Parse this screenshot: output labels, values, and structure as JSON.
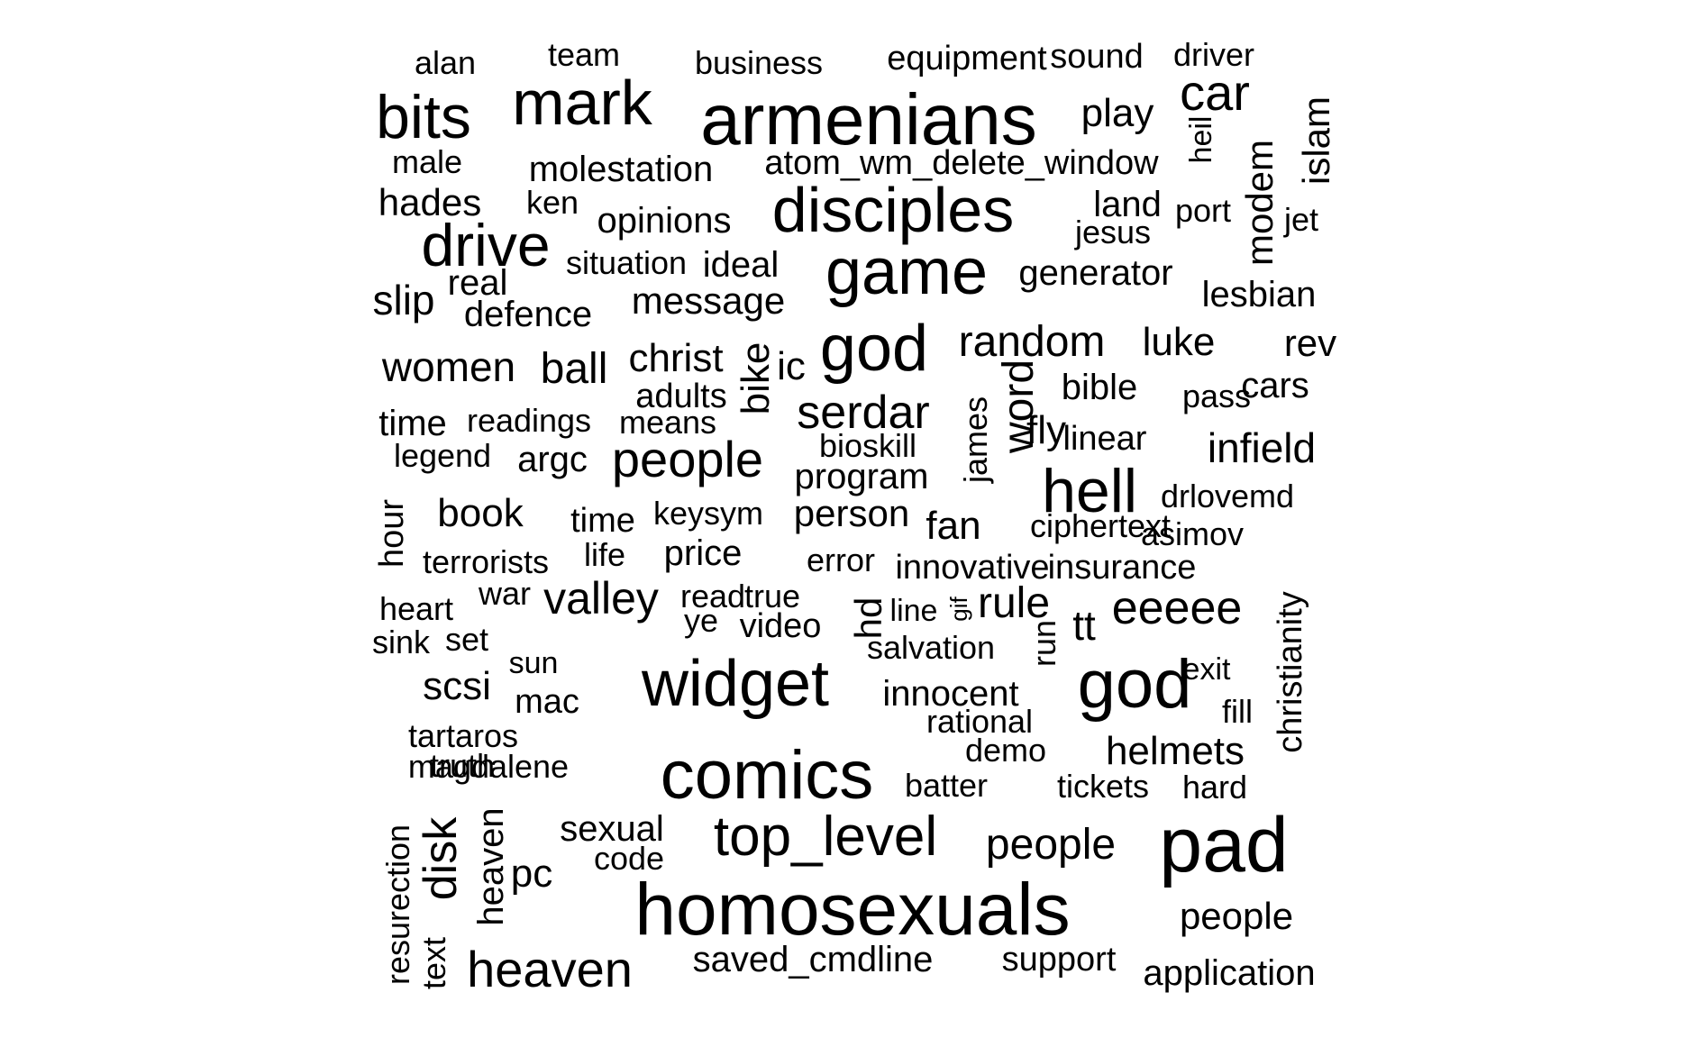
{
  "word_cloud": {
    "text_color": "#000000",
    "background": "#ffffff",
    "words": [
      {
        "text": "alan"
      },
      {
        "text": "team"
      },
      {
        "text": "business"
      },
      {
        "text": "equipment"
      },
      {
        "text": "sound"
      },
      {
        "text": "driver"
      },
      {
        "text": "bits"
      },
      {
        "text": "mark"
      },
      {
        "text": "armenians"
      },
      {
        "text": "play"
      },
      {
        "text": "car"
      },
      {
        "text": "male"
      },
      {
        "text": "molestation"
      },
      {
        "text": "atom_wm_delete_window"
      },
      {
        "text": "heil",
        "vertical": true
      },
      {
        "text": "islam",
        "vertical": true
      },
      {
        "text": "modem",
        "vertical": true
      },
      {
        "text": "hades"
      },
      {
        "text": "ken"
      },
      {
        "text": "opinions"
      },
      {
        "text": "disciples"
      },
      {
        "text": "land"
      },
      {
        "text": "port"
      },
      {
        "text": "jet"
      },
      {
        "text": "jesus"
      },
      {
        "text": "drive"
      },
      {
        "text": "situation"
      },
      {
        "text": "ideal"
      },
      {
        "text": "game"
      },
      {
        "text": "generator"
      },
      {
        "text": "real"
      },
      {
        "text": "slip"
      },
      {
        "text": "defence"
      },
      {
        "text": "message"
      },
      {
        "text": "lesbian"
      },
      {
        "text": "women"
      },
      {
        "text": "ball"
      },
      {
        "text": "christ"
      },
      {
        "text": "bike",
        "vertical": true
      },
      {
        "text": "ic"
      },
      {
        "text": "god"
      },
      {
        "text": "random"
      },
      {
        "text": "luke"
      },
      {
        "text": "rev"
      },
      {
        "text": "adults"
      },
      {
        "text": "bible"
      },
      {
        "text": "pass"
      },
      {
        "text": "cars"
      },
      {
        "text": "time"
      },
      {
        "text": "readings"
      },
      {
        "text": "means"
      },
      {
        "text": "serdar"
      },
      {
        "text": "word",
        "vertical": true
      },
      {
        "text": "fly"
      },
      {
        "text": "james",
        "vertical": true
      },
      {
        "text": "linear"
      },
      {
        "text": "infield"
      },
      {
        "text": "legend"
      },
      {
        "text": "argc"
      },
      {
        "text": "people"
      },
      {
        "text": "bioskill"
      },
      {
        "text": "program"
      },
      {
        "text": "hell"
      },
      {
        "text": "drlovemd"
      },
      {
        "text": "hour",
        "vertical": true
      },
      {
        "text": "book"
      },
      {
        "text": "time"
      },
      {
        "text": "keysym"
      },
      {
        "text": "person"
      },
      {
        "text": "fan"
      },
      {
        "text": "ciphertext"
      },
      {
        "text": "asimov"
      },
      {
        "text": "terrorists"
      },
      {
        "text": "life"
      },
      {
        "text": "price"
      },
      {
        "text": "error"
      },
      {
        "text": "innovative"
      },
      {
        "text": "insurance"
      },
      {
        "text": "christianity",
        "vertical": true
      },
      {
        "text": "heart"
      },
      {
        "text": "war"
      },
      {
        "text": "valley"
      },
      {
        "text": "read"
      },
      {
        "text": "true"
      },
      {
        "text": "hd",
        "vertical": true
      },
      {
        "text": "line"
      },
      {
        "text": "gif",
        "vertical": true
      },
      {
        "text": "rule"
      },
      {
        "text": "tt"
      },
      {
        "text": "eeeee"
      },
      {
        "text": "ye"
      },
      {
        "text": "video"
      },
      {
        "text": "sink"
      },
      {
        "text": "set"
      },
      {
        "text": "salvation"
      },
      {
        "text": "run",
        "vertical": true
      },
      {
        "text": "sun"
      },
      {
        "text": "exit"
      },
      {
        "text": "scsi"
      },
      {
        "text": "widget"
      },
      {
        "text": "god"
      },
      {
        "text": "mac"
      },
      {
        "text": "innocent"
      },
      {
        "text": "fill"
      },
      {
        "text": "rational"
      },
      {
        "text": "tartaros"
      },
      {
        "text": "magdalene"
      },
      {
        "text": "demo"
      },
      {
        "text": "helmets"
      },
      {
        "text": "truth"
      },
      {
        "text": "comics"
      },
      {
        "text": "batter"
      },
      {
        "text": "tickets"
      },
      {
        "text": "hard"
      },
      {
        "text": "resurection",
        "vertical": true
      },
      {
        "text": "disk",
        "vertical": true
      },
      {
        "text": "heaven",
        "vertical": true
      },
      {
        "text": "sexual"
      },
      {
        "text": "top_level"
      },
      {
        "text": "people"
      },
      {
        "text": "pad"
      },
      {
        "text": "code"
      },
      {
        "text": "pc"
      },
      {
        "text": "homosexuals"
      },
      {
        "text": "people"
      },
      {
        "text": "text",
        "vertical": true
      },
      {
        "text": "heaven"
      },
      {
        "text": "saved_cmdline"
      },
      {
        "text": "support"
      },
      {
        "text": "application"
      }
    ]
  }
}
